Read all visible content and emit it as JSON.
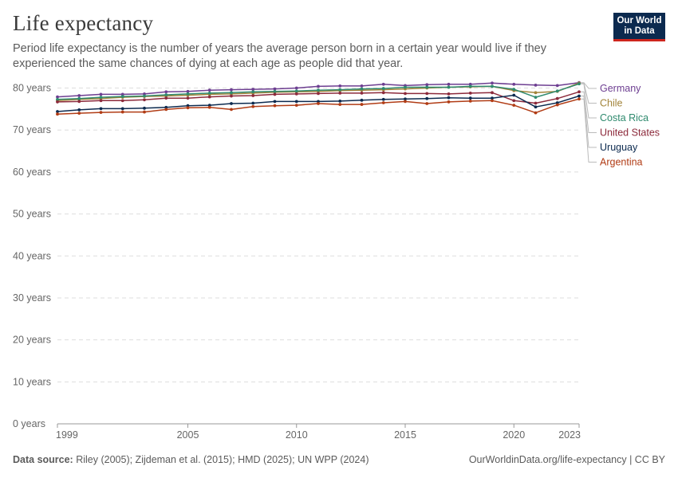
{
  "header": {
    "title": "Life expectancy",
    "subtitle": "Period life expectancy is the number of years the average person born in a certain year would live if they experienced the same chances of dying at each age as people did that year.",
    "logo_line1": "Our World",
    "logo_line2": "in Data",
    "logo_colors": {
      "background": "#0c2a4f",
      "accent": "#ce261e"
    }
  },
  "footer": {
    "source_label": "Data source:",
    "source_text": "Riley (2005); Zijdeman et al. (2015); HMD (2025); UN WPP (2024)",
    "url_text": "OurWorldinData.org/life-expectancy | CC BY"
  },
  "chart_data": {
    "type": "line",
    "title": "Life expectancy",
    "xlabel": "",
    "ylabel": "",
    "x": [
      1999,
      2000,
      2001,
      2002,
      2003,
      2004,
      2005,
      2006,
      2007,
      2008,
      2009,
      2010,
      2011,
      2012,
      2013,
      2014,
      2015,
      2016,
      2017,
      2018,
      2019,
      2020,
      2021,
      2022,
      2023
    ],
    "xlim": [
      1999,
      2023
    ],
    "ylim": [
      0,
      82
    ],
    "x_ticks": [
      {
        "value": 1999,
        "label": "1999"
      },
      {
        "value": 2005,
        "label": "2005"
      },
      {
        "value": 2010,
        "label": "2010"
      },
      {
        "value": 2015,
        "label": "2015"
      },
      {
        "value": 2020,
        "label": "2020"
      },
      {
        "value": 2023,
        "label": "2023"
      }
    ],
    "y_ticks": [
      {
        "value": 0,
        "label": "0 years"
      },
      {
        "value": 10,
        "label": "10 years"
      },
      {
        "value": 20,
        "label": "20 years"
      },
      {
        "value": 30,
        "label": "30 years"
      },
      {
        "value": 40,
        "label": "40 years"
      },
      {
        "value": 50,
        "label": "50 years"
      },
      {
        "value": 60,
        "label": "60 years"
      },
      {
        "value": 70,
        "label": "70 years"
      },
      {
        "value": 80,
        "label": "80 years"
      }
    ],
    "grid": "horizontal dashed",
    "legend_position": "right",
    "series": [
      {
        "name": "Germany",
        "color": "#6d3e91",
        "values": [
          77.9,
          78.2,
          78.5,
          78.5,
          78.6,
          79.1,
          79.2,
          79.5,
          79.6,
          79.7,
          79.8,
          80.0,
          80.4,
          80.5,
          80.5,
          80.9,
          80.6,
          80.8,
          80.9,
          80.9,
          81.2,
          80.9,
          80.7,
          80.6,
          81.3
        ]
      },
      {
        "name": "Chile",
        "color": "#a2843a",
        "values": [
          77.0,
          77.3,
          77.5,
          77.8,
          78.0,
          78.1,
          78.3,
          78.5,
          78.6,
          78.8,
          79.0,
          79.1,
          79.2,
          79.4,
          79.5,
          79.6,
          79.8,
          80.0,
          80.2,
          80.3,
          80.4,
          79.4,
          78.9,
          79.2,
          81.2
        ]
      },
      {
        "name": "Costa Rica",
        "color": "#2f8a6e",
        "values": [
          77.3,
          77.5,
          77.8,
          78.0,
          78.1,
          78.4,
          78.6,
          78.8,
          78.9,
          79.1,
          79.2,
          79.3,
          79.5,
          79.6,
          79.8,
          79.9,
          80.2,
          80.2,
          80.2,
          80.4,
          80.4,
          79.7,
          77.8,
          79.3,
          81.0
        ]
      },
      {
        "name": "United States",
        "color": "#8c2a3b",
        "values": [
          76.7,
          76.8,
          77.0,
          77.0,
          77.2,
          77.6,
          77.6,
          77.9,
          78.1,
          78.2,
          78.5,
          78.6,
          78.7,
          78.8,
          78.8,
          78.9,
          78.7,
          78.7,
          78.6,
          78.8,
          78.9,
          77.0,
          76.4,
          77.5,
          79.1
        ]
      },
      {
        "name": "Uruguay",
        "color": "#0c2a4f",
        "values": [
          74.4,
          74.8,
          75.1,
          75.1,
          75.2,
          75.4,
          75.8,
          75.9,
          76.3,
          76.4,
          76.8,
          76.8,
          76.8,
          76.9,
          77.1,
          77.3,
          77.4,
          77.5,
          77.7,
          77.6,
          77.6,
          78.3,
          75.5,
          76.5,
          78.1
        ]
      },
      {
        "name": "Argentina",
        "color": "#b13c15",
        "values": [
          73.8,
          74.0,
          74.2,
          74.3,
          74.3,
          74.9,
          75.3,
          75.4,
          74.9,
          75.6,
          75.8,
          75.9,
          76.3,
          76.1,
          76.1,
          76.5,
          76.8,
          76.3,
          76.7,
          76.9,
          77.0,
          75.9,
          74.1,
          76.0,
          77.4
        ]
      }
    ]
  }
}
